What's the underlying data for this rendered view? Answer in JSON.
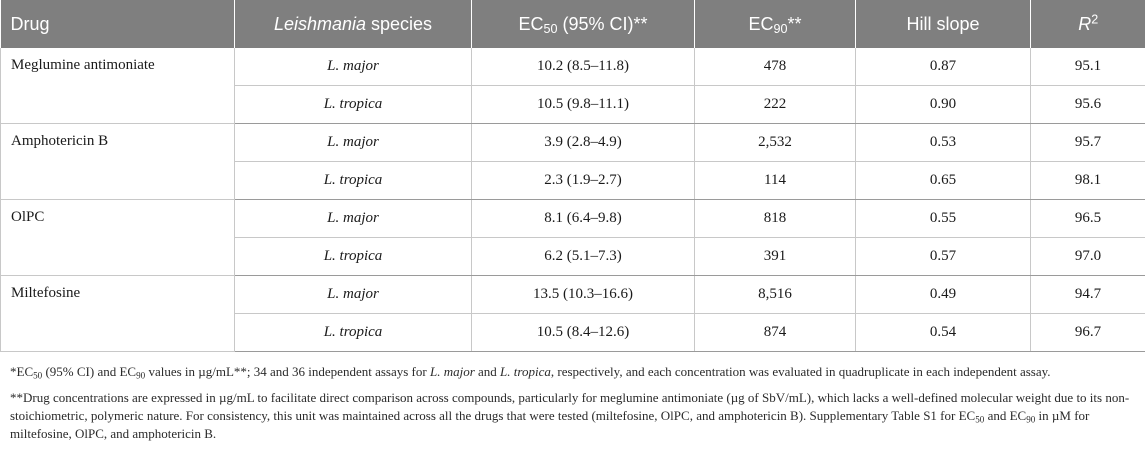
{
  "header": {
    "drug": "Drug",
    "species": "Leishmania",
    "species_suffix": "species",
    "ec50_pre": "EC",
    "ec50_sub": "50",
    "ec50_post": " (95% CI)**",
    "ec90_pre": "EC",
    "ec90_sub": "90",
    "ec90_post": "**",
    "hill": "Hill slope",
    "r2_letter": "R",
    "r2_sup": "2"
  },
  "rows": [
    {
      "drug": "Meglumine antimoniate",
      "species": "L. major",
      "ec50": "10.2 (8.5–11.8)",
      "ec90": "478",
      "hill": "0.87",
      "r2": "95.1"
    },
    {
      "drug": "",
      "species": "L. tropica",
      "ec50": "10.5 (9.8–11.1)",
      "ec90": "222",
      "hill": "0.90",
      "r2": "95.6"
    },
    {
      "drug": "Amphotericin B",
      "species": "L. major",
      "ec50": "3.9 (2.8–4.9)",
      "ec90": "2,532",
      "hill": "0.53",
      "r2": "95.7"
    },
    {
      "drug": "",
      "species": "L. tropica",
      "ec50": "2.3 (1.9–2.7)",
      "ec90": "114",
      "hill": "0.65",
      "r2": "98.1"
    },
    {
      "drug": "OlPC",
      "species": "L. major",
      "ec50": "8.1 (6.4–9.8)",
      "ec90": "818",
      "hill": "0.55",
      "r2": "96.5"
    },
    {
      "drug": "",
      "species": "L. tropica",
      "ec50": "6.2 (5.1–7.3)",
      "ec90": "391",
      "hill": "0.57",
      "r2": "97.0"
    },
    {
      "drug": "Miltefosine",
      "species": "L. major",
      "ec50": "13.5 (10.3–16.6)",
      "ec90": "8,516",
      "hill": "0.49",
      "r2": "94.7"
    },
    {
      "drug": "",
      "species": "L. tropica",
      "ec50": "10.5 (8.4–12.6)",
      "ec90": "874",
      "hill": "0.54",
      "r2": "96.7"
    }
  ],
  "notes": {
    "n1": {
      "a": "*EC",
      "a_sub": "50",
      "b": " (95% CI) and EC",
      "b_sub": "90",
      "c": " values in µg/mL**; 34 and 36 independent assays for ",
      "sp1": "L. major",
      "d": " and ",
      "sp2": "L. tropica",
      "e": ", respectively, and each concentration was evaluated in quadruplicate in each independent assay."
    },
    "n2": {
      "a": "**Drug concentrations are expressed in µg/mL to facilitate direct comparison across compounds, particularly for meglumine antimoniate (µg of SbV/mL), which lacks a well-defined molecular weight due to its non-stoichiometric, polymeric nature. For consistency, this unit was maintained across all the drugs that were tested (miltefosine, OlPC, and amphotericin B). Supplementary Table S1 for EC",
      "a_sub": "50",
      "b": " and EC",
      "b_sub": "90",
      "c": " in µM for miltefosine, OlPC, and amphotericin B."
    }
  },
  "colors": {
    "header_bg": "#7f7f7f",
    "header_text": "#ffffff",
    "grid": "#c8c8c8"
  }
}
